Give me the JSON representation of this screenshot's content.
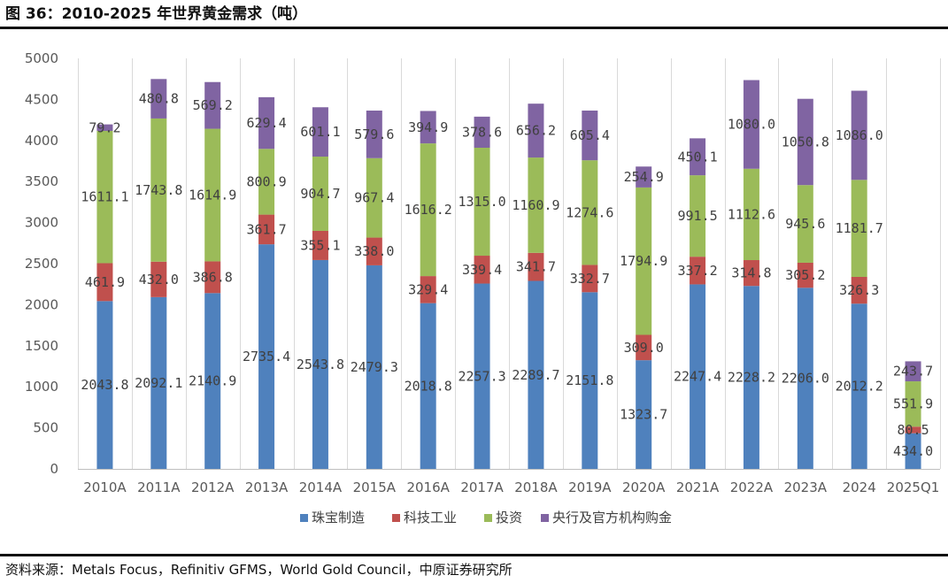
{
  "title": "图 36：2010-2025 年世界黄金需求（吨）",
  "source": "资料来源：Metals Focus，Refinitiv GFMS，World Gold Council，中原证券研究所",
  "chart_data": {
    "type": "bar",
    "stacked": true,
    "categories": [
      "2010A",
      "2011A",
      "2012A",
      "2013A",
      "2014A",
      "2015A",
      "2016A",
      "2017A",
      "2018A",
      "2019A",
      "2020A",
      "2021A",
      "2022A",
      "2023A",
      "2024",
      "2025Q1"
    ],
    "series": [
      {
        "name": "珠宝制造",
        "color": "#4f81bd",
        "values": [
          2043.8,
          2092.1,
          2140.9,
          2735.4,
          2543.8,
          2479.3,
          2018.8,
          2257.3,
          2289.7,
          2151.8,
          1323.7,
          2247.4,
          2228.2,
          2206.0,
          2012.2,
          434.0
        ],
        "labels": [
          "2043.8",
          "2092.1",
          "2140.9",
          "2735.4",
          "2543.8",
          "2479.3",
          "2018.8",
          "2257.3",
          "2289.7",
          "2151.8",
          "1323.7",
          "2247.4",
          "2228.2",
          "2206.0",
          "2012.2",
          "434.0"
        ]
      },
      {
        "name": "科技工业",
        "color": "#c0504d",
        "values": [
          461.9,
          432.0,
          386.8,
          361.7,
          355.1,
          338.0,
          329.4,
          339.4,
          341.7,
          332.7,
          309.0,
          337.2,
          314.8,
          305.2,
          326.3,
          80.5
        ],
        "labels": [
          "461.9",
          "432.0",
          "386.8",
          "361.7",
          "355.1",
          "338.0",
          "329.4",
          "339.4",
          "341.7",
          "332.7",
          "309.0",
          "337.2",
          "314.8",
          "305.2",
          "326.3",
          "80.5"
        ]
      },
      {
        "name": "投资",
        "color": "#9bbb59",
        "values": [
          1611.1,
          1743.8,
          1614.9,
          800.9,
          904.7,
          967.4,
          1616.2,
          1315.0,
          1160.9,
          1274.6,
          1794.9,
          991.5,
          1112.6,
          945.6,
          1181.7,
          551.9
        ],
        "labels": [
          "1611.1",
          "1743.8",
          "1614.9",
          "800.9",
          "904.7",
          "967.4",
          "1616.2",
          "1315.0",
          "1160.9",
          "1274.6",
          "1794.9",
          "991.5",
          "1112.6",
          "945.6",
          "1181.7",
          "551.9"
        ]
      },
      {
        "name": "央行及官方机构购金",
        "color": "#8064a2",
        "values": [
          79.2,
          480.8,
          569.2,
          629.4,
          601.1,
          579.6,
          394.9,
          378.6,
          656.2,
          605.4,
          254.9,
          450.1,
          1080.0,
          1050.8,
          1086.0,
          243.7
        ],
        "labels": [
          "79.2",
          "480.8",
          "569.2",
          "629.4",
          "601.1",
          "579.6",
          "394.9",
          "378.6",
          "656.2",
          "605.4",
          "254.9",
          "450.1",
          "1080.0",
          "1050.8",
          "1086.0",
          "243.7"
        ]
      }
    ],
    "ylim": [
      0,
      5000
    ],
    "yticks": [
      0,
      500,
      1000,
      1500,
      2000,
      2500,
      3000,
      3500,
      4000,
      4500,
      5000
    ],
    "gridlines": "vertical",
    "legend": "bottom"
  }
}
